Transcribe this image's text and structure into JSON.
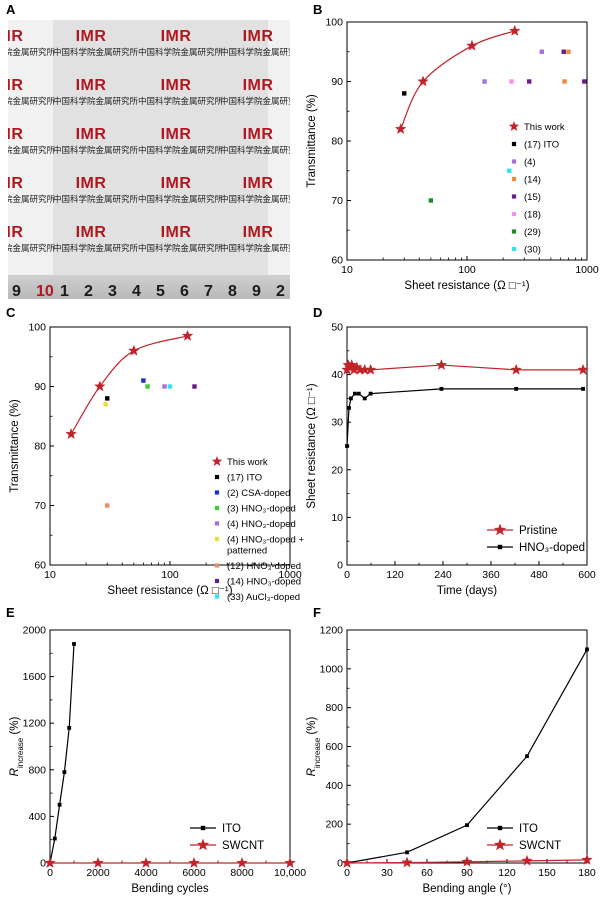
{
  "panels": {
    "A": {
      "label": "A",
      "logo_text": "IMR",
      "header_text": "中国科学院金属研究所",
      "ruler_numbers": [
        "9",
        "10",
        "1",
        "2",
        "3",
        "4",
        "5",
        "6",
        "7",
        "8",
        "9",
        "2"
      ]
    },
    "B": {
      "label": "B"
    },
    "C": {
      "label": "C"
    },
    "D": {
      "label": "D"
    },
    "E": {
      "label": "E"
    },
    "F": {
      "label": "F"
    }
  },
  "chart_data": [
    {
      "id": "B",
      "type": "scatter",
      "xlabel": "Sheet resistance (Ω □⁻¹)",
      "ylabel": "Transmittance (%)",
      "xscale": "log",
      "xlim": [
        10,
        1000
      ],
      "ylim": [
        60,
        100
      ],
      "xticks": [
        "10",
        "100",
        "1000"
      ],
      "yticks": [
        "60",
        "70",
        "80",
        "90",
        "100"
      ],
      "legend_position": "right",
      "series": [
        {
          "name": "This work",
          "color": "#c0242b",
          "marker": "star",
          "line": "fit",
          "points": [
            [
              28,
              82
            ],
            [
              43,
              90
            ],
            [
              110,
              96
            ],
            [
              250,
              98.5
            ]
          ]
        },
        {
          "name": "(17) ITO",
          "color": "#000000",
          "marker": "square",
          "points": [
            [
              30,
              88
            ]
          ]
        },
        {
          "name": "(4)",
          "color": "#a86fd6",
          "marker": "square",
          "points": [
            [
              140,
              90
            ],
            [
              420,
              95
            ]
          ]
        },
        {
          "name": "(14)",
          "color": "#f08a3c",
          "marker": "square",
          "points": [
            [
              650,
              90
            ],
            [
              700,
              95
            ]
          ]
        },
        {
          "name": "(15)",
          "color": "#6a1b8a",
          "marker": "square",
          "points": [
            [
              330,
              90
            ],
            [
              640,
              95
            ],
            [
              950,
              90
            ]
          ]
        },
        {
          "name": "(18)",
          "color": "#f78ef0",
          "marker": "square",
          "points": [
            [
              235,
              90
            ]
          ]
        },
        {
          "name": "(29)",
          "color": "#1f8a2c",
          "marker": "square",
          "points": [
            [
              50,
              70
            ]
          ]
        },
        {
          "name": "(30)",
          "color": "#2de6f0",
          "marker": "square",
          "points": [
            [
              225,
              75
            ]
          ]
        }
      ]
    },
    {
      "id": "C",
      "type": "scatter",
      "xlabel": "Sheet resistance (Ω □⁻¹)",
      "ylabel": "Transmittance (%)",
      "xscale": "log",
      "xlim": [
        10,
        1000
      ],
      "ylim": [
        60,
        100
      ],
      "xticks": [
        "10",
        "100",
        "1000"
      ],
      "yticks": [
        "60",
        "70",
        "80",
        "90",
        "100"
      ],
      "legend_position": "right",
      "series": [
        {
          "name": "This work",
          "color": "#c0242b",
          "marker": "star",
          "line": "fit",
          "points": [
            [
              15,
              82
            ],
            [
              26,
              90
            ],
            [
              50,
              96
            ],
            [
              140,
              98.5
            ]
          ]
        },
        {
          "name": "(17) ITO",
          "color": "#000000",
          "marker": "square",
          "points": [
            [
              30,
              88
            ]
          ]
        },
        {
          "name": "(2) CSA-doped",
          "color": "#1530d8",
          "marker": "square",
          "points": [
            [
              60,
              91
            ]
          ]
        },
        {
          "name": "(3) HNO₃-doped",
          "color": "#39d02d",
          "marker": "square",
          "points": [
            [
              65,
              90
            ]
          ]
        },
        {
          "name": "(4) HNO₃-doped",
          "color": "#a86fd6",
          "marker": "square",
          "points": [
            [
              90,
              90
            ]
          ]
        },
        {
          "name": "(4) HNO₃-doped + patterned",
          "color": "#e6e22c",
          "marker": "square",
          "points": [
            [
              29,
              87
            ]
          ]
        },
        {
          "name": "(12) HNO₃-doped",
          "color": "#f08a6a",
          "marker": "square",
          "points": [
            [
              30,
              70
            ]
          ]
        },
        {
          "name": "(14) HNO₃-doped",
          "color": "#6a1b8a",
          "marker": "square",
          "points": [
            [
              160,
              90
            ]
          ]
        },
        {
          "name": "(33) AuCl₃-doped",
          "color": "#2de6f0",
          "marker": "square",
          "points": [
            [
              100,
              90
            ]
          ]
        }
      ]
    },
    {
      "id": "D",
      "type": "line",
      "xlabel": "Time (days)",
      "ylabel": "Sheet resistance (Ω □⁻¹)",
      "xlim": [
        0,
        610
      ],
      "ylim": [
        0,
        50
      ],
      "xticks": [
        "0",
        "120",
        "240",
        "360",
        "480",
        "600"
      ],
      "yticks": [
        "0",
        "10",
        "20",
        "30",
        "40",
        "50"
      ],
      "legend_position": "bottom-right",
      "series": [
        {
          "name": "Pristine",
          "color": "#c0242b",
          "marker": "star",
          "points": [
            [
              0,
              41
            ],
            [
              3,
              42
            ],
            [
              7,
              41.5
            ],
            [
              12,
              42
            ],
            [
              18,
              41
            ],
            [
              25,
              41.5
            ],
            [
              33,
              41
            ],
            [
              45,
              41
            ],
            [
              60,
              41
            ],
            [
              240,
              42
            ],
            [
              430,
              41
            ],
            [
              600,
              41
            ]
          ]
        },
        {
          "name": "HNO₃-doped",
          "color": "#000000",
          "marker": "square",
          "points": [
            [
              0,
              25
            ],
            [
              5,
              33
            ],
            [
              10,
              35
            ],
            [
              20,
              36
            ],
            [
              30,
              36
            ],
            [
              45,
              35
            ],
            [
              60,
              36
            ],
            [
              240,
              37
            ],
            [
              430,
              37
            ],
            [
              600,
              37
            ]
          ]
        }
      ]
    },
    {
      "id": "E",
      "type": "line",
      "xlabel": "Bending cycles",
      "ylabel": "R_increase (%)",
      "xlim": [
        0,
        10000
      ],
      "ylim": [
        0,
        2000
      ],
      "xticks": [
        "0",
        "2000",
        "4000",
        "6000",
        "8000",
        "10,000"
      ],
      "yticks": [
        "0",
        "400",
        "800",
        "1200",
        "1600",
        "2000"
      ],
      "legend_position": "bottom-right",
      "series": [
        {
          "name": "ITO",
          "color": "#000000",
          "marker": "square",
          "points": [
            [
              0,
              0
            ],
            [
              200,
              210
            ],
            [
              400,
              500
            ],
            [
              600,
              780
            ],
            [
              800,
              1160
            ],
            [
              1000,
              1880
            ]
          ]
        },
        {
          "name": "SWCNT",
          "color": "#c0242b",
          "marker": "star",
          "points": [
            [
              0,
              0
            ],
            [
              2000,
              0
            ],
            [
              4000,
              0
            ],
            [
              6000,
              0
            ],
            [
              8000,
              0
            ],
            [
              10000,
              0
            ]
          ]
        }
      ]
    },
    {
      "id": "F",
      "type": "line",
      "xlabel": "Bending angle (°)",
      "ylabel": "R_increase (%)",
      "xlim": [
        0,
        180
      ],
      "ylim": [
        0,
        1200
      ],
      "xticks": [
        "0",
        "30",
        "60",
        "90",
        "120",
        "150",
        "180"
      ],
      "yticks": [
        "0",
        "200",
        "400",
        "600",
        "800",
        "1000",
        "1200"
      ],
      "legend_position": "bottom-right",
      "series": [
        {
          "name": "ITO",
          "color": "#000000",
          "marker": "square",
          "points": [
            [
              0,
              0
            ],
            [
              45,
              55
            ],
            [
              90,
              195
            ],
            [
              135,
              550
            ],
            [
              180,
              1100
            ]
          ]
        },
        {
          "name": "SWCNT",
          "color": "#c0242b",
          "marker": "star",
          "points": [
            [
              0,
              0
            ],
            [
              45,
              2
            ],
            [
              90,
              6
            ],
            [
              135,
              11
            ],
            [
              180,
              16
            ]
          ]
        }
      ]
    }
  ]
}
